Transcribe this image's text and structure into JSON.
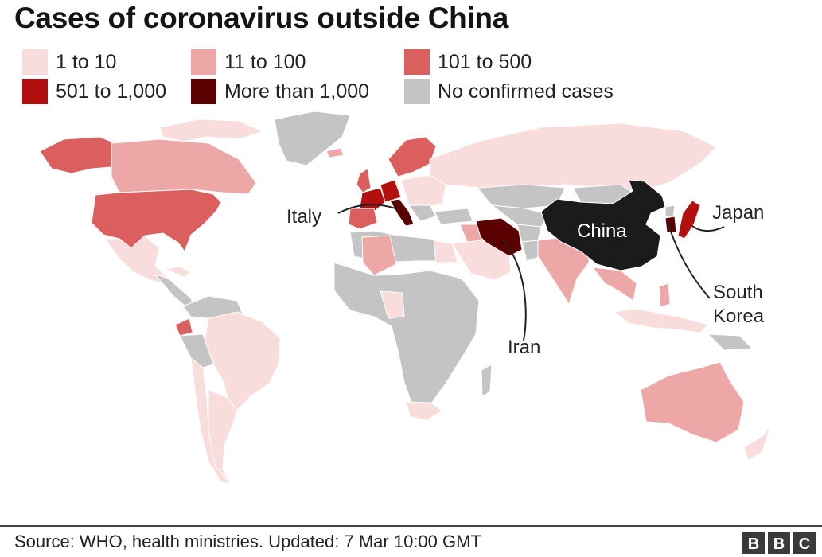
{
  "title": "Cases of coronavirus outside China",
  "legend": [
    {
      "label": "1 to 10",
      "color": "#f9dcdc"
    },
    {
      "label": "11 to 100",
      "color": "#eea7a7"
    },
    {
      "label": "101 to 500",
      "color": "#dc5f5f"
    },
    {
      "label": "501 to 1,000",
      "color": "#b30f0f"
    },
    {
      "label": "More than 1,000",
      "color": "#5b0000"
    },
    {
      "label": "No confirmed cases",
      "color": "#c4c4c4"
    }
  ],
  "map": {
    "labels": {
      "china": "China",
      "italy": "Italy",
      "japan": "Japan",
      "south_korea_line1": "South",
      "south_korea_line2": "Korea",
      "iran": "Iran"
    },
    "china_color": "#1b1b1b"
  },
  "footer": {
    "source": "Source: WHO, health ministries. Updated: 7 Mar 10:00 GMT",
    "logo": "BBC"
  }
}
